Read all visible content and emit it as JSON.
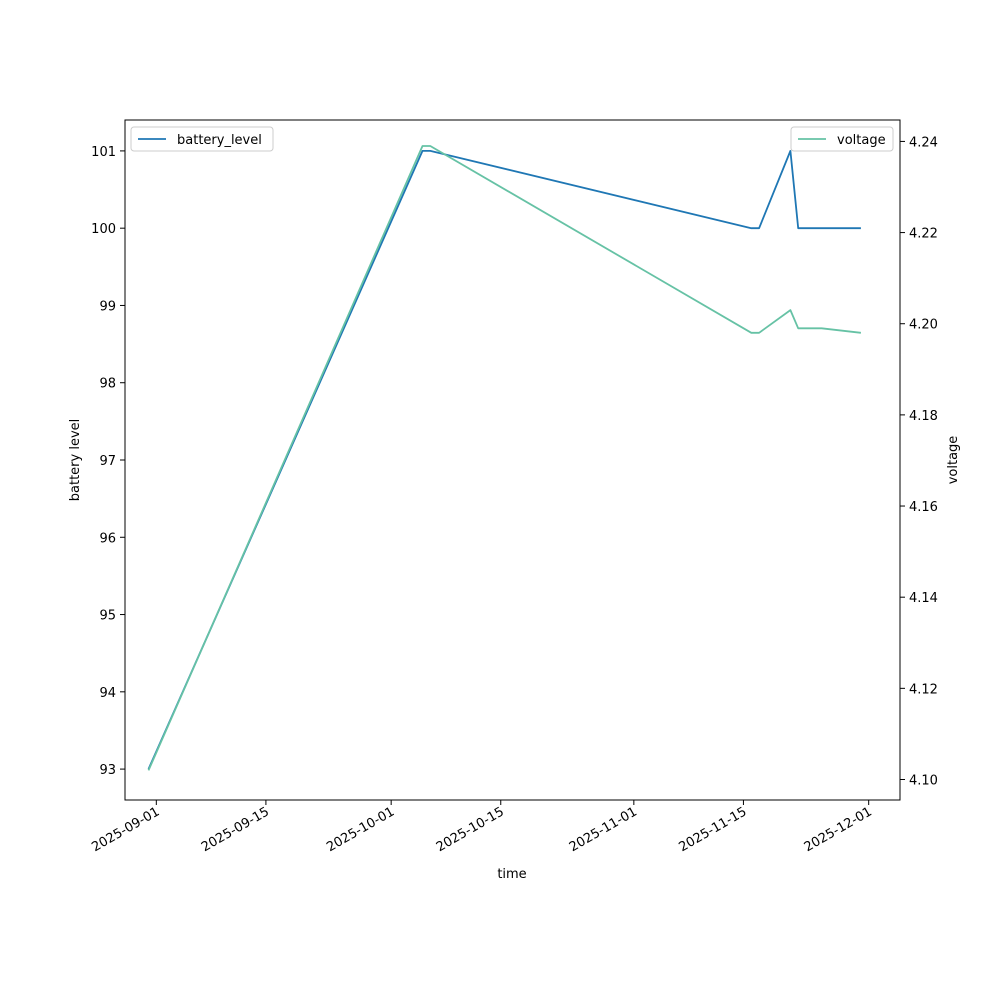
{
  "chart_data": {
    "type": "line",
    "xlabel": "time",
    "ylabel": "battery level",
    "y2label": "voltage",
    "x_ticks": [
      "2025-09-01",
      "2025-09-15",
      "2025-10-01",
      "2025-10-15",
      "2025-11-01",
      "2025-11-15",
      "2025-12-01"
    ],
    "y_ticks": [
      "93",
      "94",
      "95",
      "96",
      "97",
      "98",
      "99",
      "100",
      "101"
    ],
    "y2_ticks": [
      "4.10",
      "4.12",
      "4.14",
      "4.16",
      "4.18",
      "4.20",
      "4.22",
      "4.24"
    ],
    "xlim": [
      "2025-08-28",
      "2025-12-05"
    ],
    "ylim": [
      92.6,
      101.4
    ],
    "y2lim": [
      4.0955,
      4.2447
    ],
    "grid": false,
    "series": [
      {
        "name": "battery_level",
        "axis": "left",
        "color": "#1f77b4",
        "legend_position": "upper-left",
        "x": [
          "2025-08-31",
          "2025-10-05",
          "2025-10-06",
          "2025-11-16",
          "2025-11-17",
          "2025-11-21",
          "2025-11-22",
          "2025-11-23",
          "2025-11-26",
          "2025-11-30"
        ],
        "values": [
          93,
          101,
          101,
          100,
          100,
          101,
          100,
          100,
          100,
          100
        ]
      },
      {
        "name": "voltage",
        "axis": "right",
        "color": "#66c2a5",
        "legend_position": "upper-right",
        "x": [
          "2025-08-31",
          "2025-10-05",
          "2025-10-06",
          "2025-11-16",
          "2025-11-17",
          "2025-11-21",
          "2025-11-22",
          "2025-11-23",
          "2025-11-25",
          "2025-11-30"
        ],
        "values": [
          4.102,
          4.239,
          4.239,
          4.198,
          4.198,
          4.203,
          4.199,
          4.199,
          4.199,
          4.198
        ]
      }
    ]
  }
}
